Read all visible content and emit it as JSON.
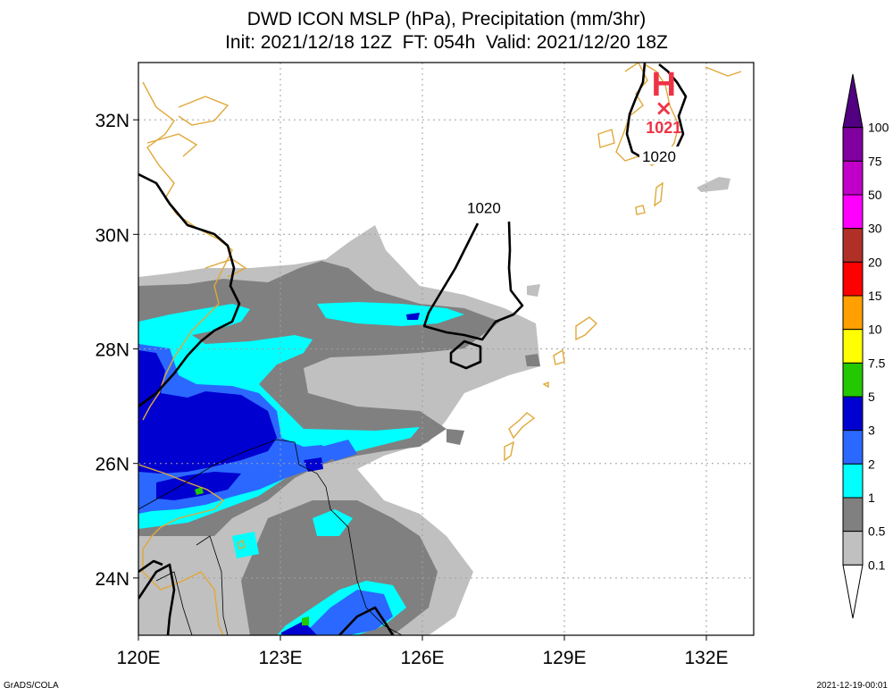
{
  "header": {
    "title_line1": "DWD ICON MSLP (hPa), Precipitation (mm/3hr)",
    "title_line2": "Init: 2021/12/18 12Z  FT: 054h  Valid: 2021/12/20 18Z"
  },
  "footer": {
    "left": "GrADS/COLA",
    "right": "2021-12-19-00:01"
  },
  "map": {
    "lon_range": [
      120,
      133
    ],
    "lat_range": [
      23,
      33
    ],
    "lon_ticks": [
      {
        "value": 120,
        "label": "120E"
      },
      {
        "value": 123,
        "label": "123E"
      },
      {
        "value": 126,
        "label": "126E"
      },
      {
        "value": 129,
        "label": "129E"
      },
      {
        "value": 132,
        "label": "132E"
      }
    ],
    "lat_ticks": [
      {
        "value": 24,
        "label": "24N"
      },
      {
        "value": 26,
        "label": "26N"
      },
      {
        "value": 28,
        "label": "28N"
      },
      {
        "value": 30,
        "label": "30N"
      },
      {
        "value": 32,
        "label": "32N"
      }
    ],
    "grid": true,
    "high_pressure": {
      "symbol": "H",
      "marker": "×",
      "value": "1021",
      "lon": 131.1,
      "lat": 32.3
    },
    "isobar_labels": [
      {
        "text": "1020",
        "lon": 127.3,
        "lat": 30.4
      },
      {
        "text": "1020",
        "lon": 131.0,
        "lat": 31.3
      }
    ]
  },
  "colorbar": {
    "levels": [
      "0.1",
      "0.5",
      "1",
      "2",
      "3",
      "5",
      "7.5",
      "10",
      "15",
      "20",
      "30",
      "50",
      "75",
      "100"
    ],
    "colors": [
      "#ffffff",
      "#c0c0c0",
      "#808080",
      "#00ffff",
      "#2b68ff",
      "#0000d0",
      "#23c800",
      "#ffff00",
      "#ffa000",
      "#ff0000",
      "#b03028",
      "#ff00ff",
      "#c000c8",
      "#8000a0",
      "#500080"
    ]
  },
  "colors": {
    "coastline": "#e0a838",
    "isobar": "#000000",
    "high_marker": "#ee3344",
    "grid": "#a0a0a0"
  }
}
